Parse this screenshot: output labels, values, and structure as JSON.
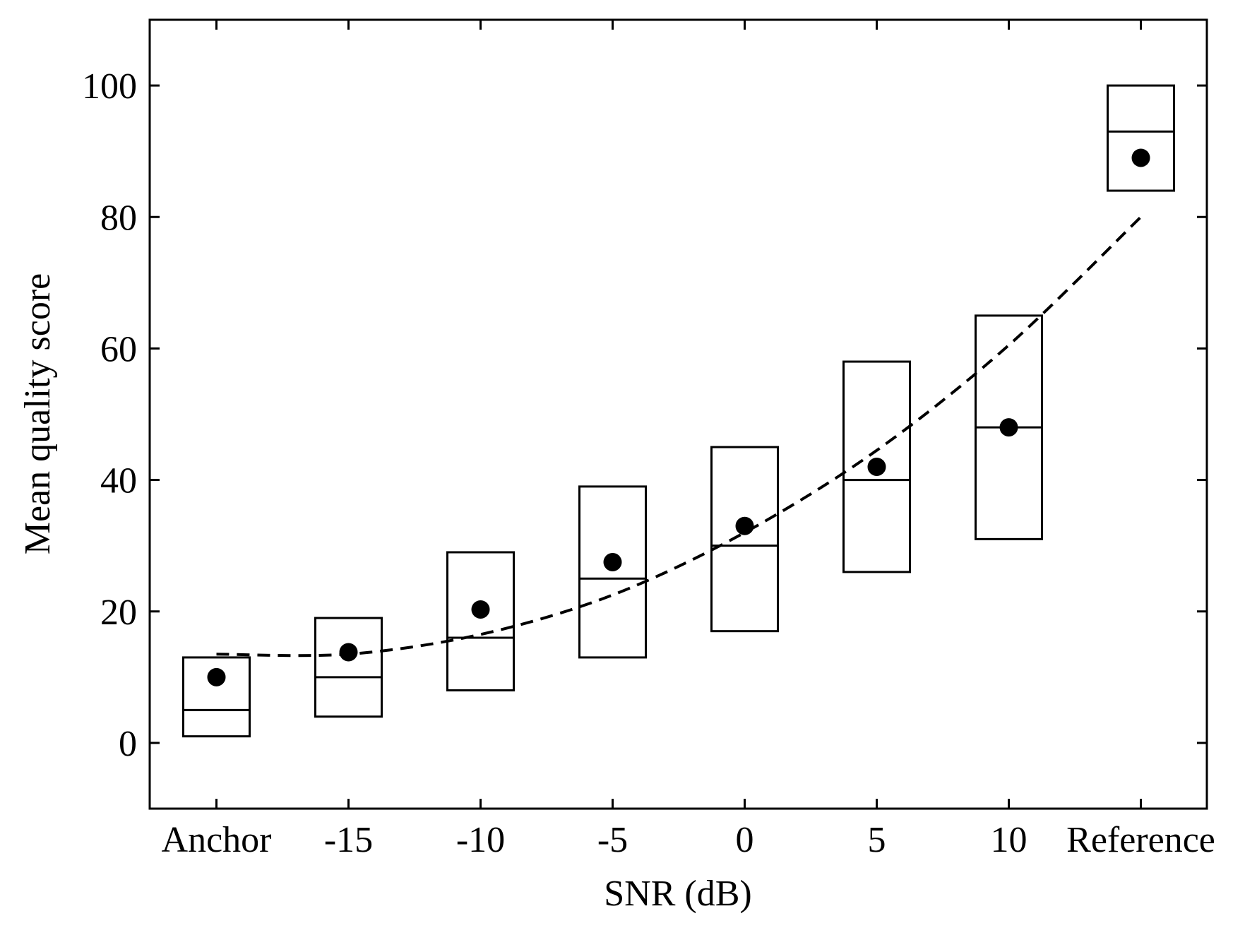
{
  "chart_data": {
    "type": "box",
    "xlabel": "SNR (dB)",
    "ylabel": "Mean quality score",
    "categories": [
      "Anchor",
      "-15",
      "-10",
      "-5",
      "0",
      "5",
      "10",
      "Reference"
    ],
    "ylim": [
      -10,
      110
    ],
    "yticks": [
      0,
      20,
      40,
      60,
      80,
      100
    ],
    "grid": false,
    "boxes": [
      {
        "category": "Anchor",
        "lower": 1,
        "median": 5,
        "upper": 13,
        "mean": 10
      },
      {
        "category": "-15",
        "lower": 4,
        "median": 10,
        "upper": 19,
        "mean": 13.8
      },
      {
        "category": "-10",
        "lower": 8,
        "median": 16,
        "upper": 29,
        "mean": 20.3
      },
      {
        "category": "-5",
        "lower": 13,
        "median": 25,
        "upper": 39,
        "mean": 27.5
      },
      {
        "category": "0",
        "lower": 17,
        "median": 30,
        "upper": 45,
        "mean": 33
      },
      {
        "category": "5",
        "lower": 26,
        "median": 40,
        "upper": 58,
        "mean": 42
      },
      {
        "category": "10",
        "lower": 31,
        "median": 48,
        "upper": 65,
        "mean": 48
      },
      {
        "category": "Reference",
        "lower": 84,
        "median": 93,
        "upper": 100,
        "mean": 89
      }
    ],
    "fit_line": {
      "style": "dashed",
      "values": [
        13.5,
        13.5,
        16.5,
        22.5,
        32,
        44.5,
        60.5,
        80
      ]
    }
  }
}
